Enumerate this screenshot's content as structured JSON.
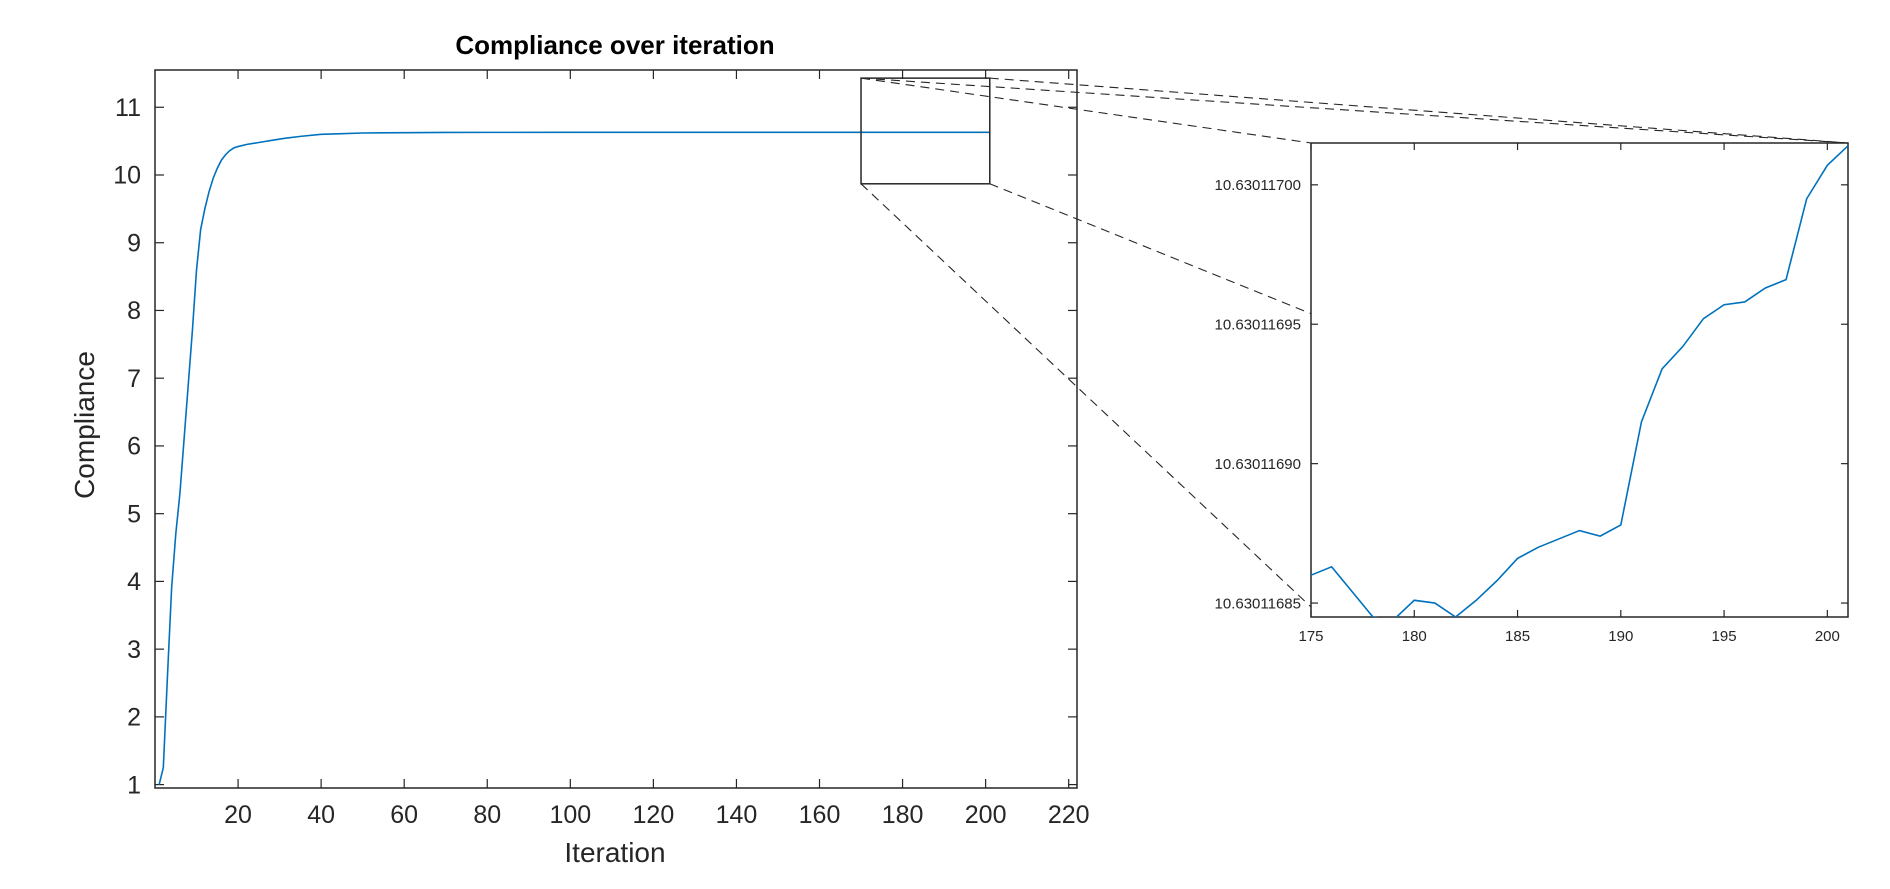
{
  "chart_data": [
    {
      "type": "line",
      "title": "Compliance over iteration",
      "xlabel": "Iteration",
      "ylabel": "Compliance",
      "xlim": [
        0,
        222
      ],
      "ylim": [
        0.95,
        11.55
      ],
      "xticks": [
        20,
        40,
        60,
        80,
        100,
        120,
        140,
        160,
        180,
        200,
        220
      ],
      "yticks": [
        1,
        2,
        3,
        4,
        5,
        6,
        7,
        8,
        9,
        10,
        11
      ],
      "grid": false,
      "series": [
        {
          "color": "#0072BD",
          "x": [
            1,
            2,
            3,
            4,
            5,
            6,
            7,
            8,
            9,
            10,
            11,
            12,
            13,
            14,
            15,
            16,
            17,
            18,
            19,
            20,
            22,
            25,
            28,
            31,
            35,
            40,
            45,
            50,
            60,
            70,
            80,
            100,
            120,
            140,
            160,
            180,
            201
          ],
          "y": [
            1.0,
            1.25,
            2.6,
            3.9,
            4.7,
            5.3,
            6.1,
            6.9,
            7.7,
            8.6,
            9.2,
            9.5,
            9.75,
            9.95,
            10.1,
            10.22,
            10.3,
            10.36,
            10.4,
            10.42,
            10.45,
            10.48,
            10.51,
            10.54,
            10.57,
            10.6,
            10.61,
            10.62,
            10.625,
            10.628,
            10.629,
            10.63,
            10.63,
            10.63,
            10.63,
            10.63,
            10.63
          ]
        }
      ],
      "zoom_box": {
        "xlim": [
          170,
          201
        ],
        "ylim": [
          9.87,
          11.43
        ]
      }
    },
    {
      "type": "line",
      "title": "",
      "xlabel": "",
      "ylabel": "",
      "xlim": [
        175,
        201
      ],
      "ylim": [
        10.630116845,
        10.630117015
      ],
      "xticks": [
        175,
        180,
        185,
        190,
        195,
        200
      ],
      "yticks": [
        10.63011685,
        10.6301169,
        10.63011695,
        10.630117
      ],
      "ytick_labels": [
        "10.63011685",
        "10.63011690",
        "10.63011695",
        "10.63011700"
      ],
      "grid": false,
      "series": [
        {
          "color": "#0072BD",
          "x": [
            175,
            176,
            177,
            178,
            179,
            180,
            181,
            182,
            183,
            184,
            185,
            186,
            187,
            188,
            189,
            190,
            191,
            192,
            193,
            194,
            195,
            196,
            197,
            198,
            199,
            200,
            201
          ],
          "y": [
            10.63011686,
            10.630116863,
            10.630116854,
            10.630116845,
            10.630116844,
            10.630116851,
            10.63011685,
            10.630116845,
            10.630116851,
            10.630116858,
            10.630116866,
            10.63011687,
            10.630116873,
            10.630116876,
            10.630116874,
            10.630116878,
            10.630116915,
            10.630116934,
            10.630116942,
            10.630116952,
            10.630116957,
            10.630116958,
            10.630116963,
            10.630116966,
            10.630116995,
            10.630117007,
            10.630117014
          ]
        }
      ]
    }
  ]
}
